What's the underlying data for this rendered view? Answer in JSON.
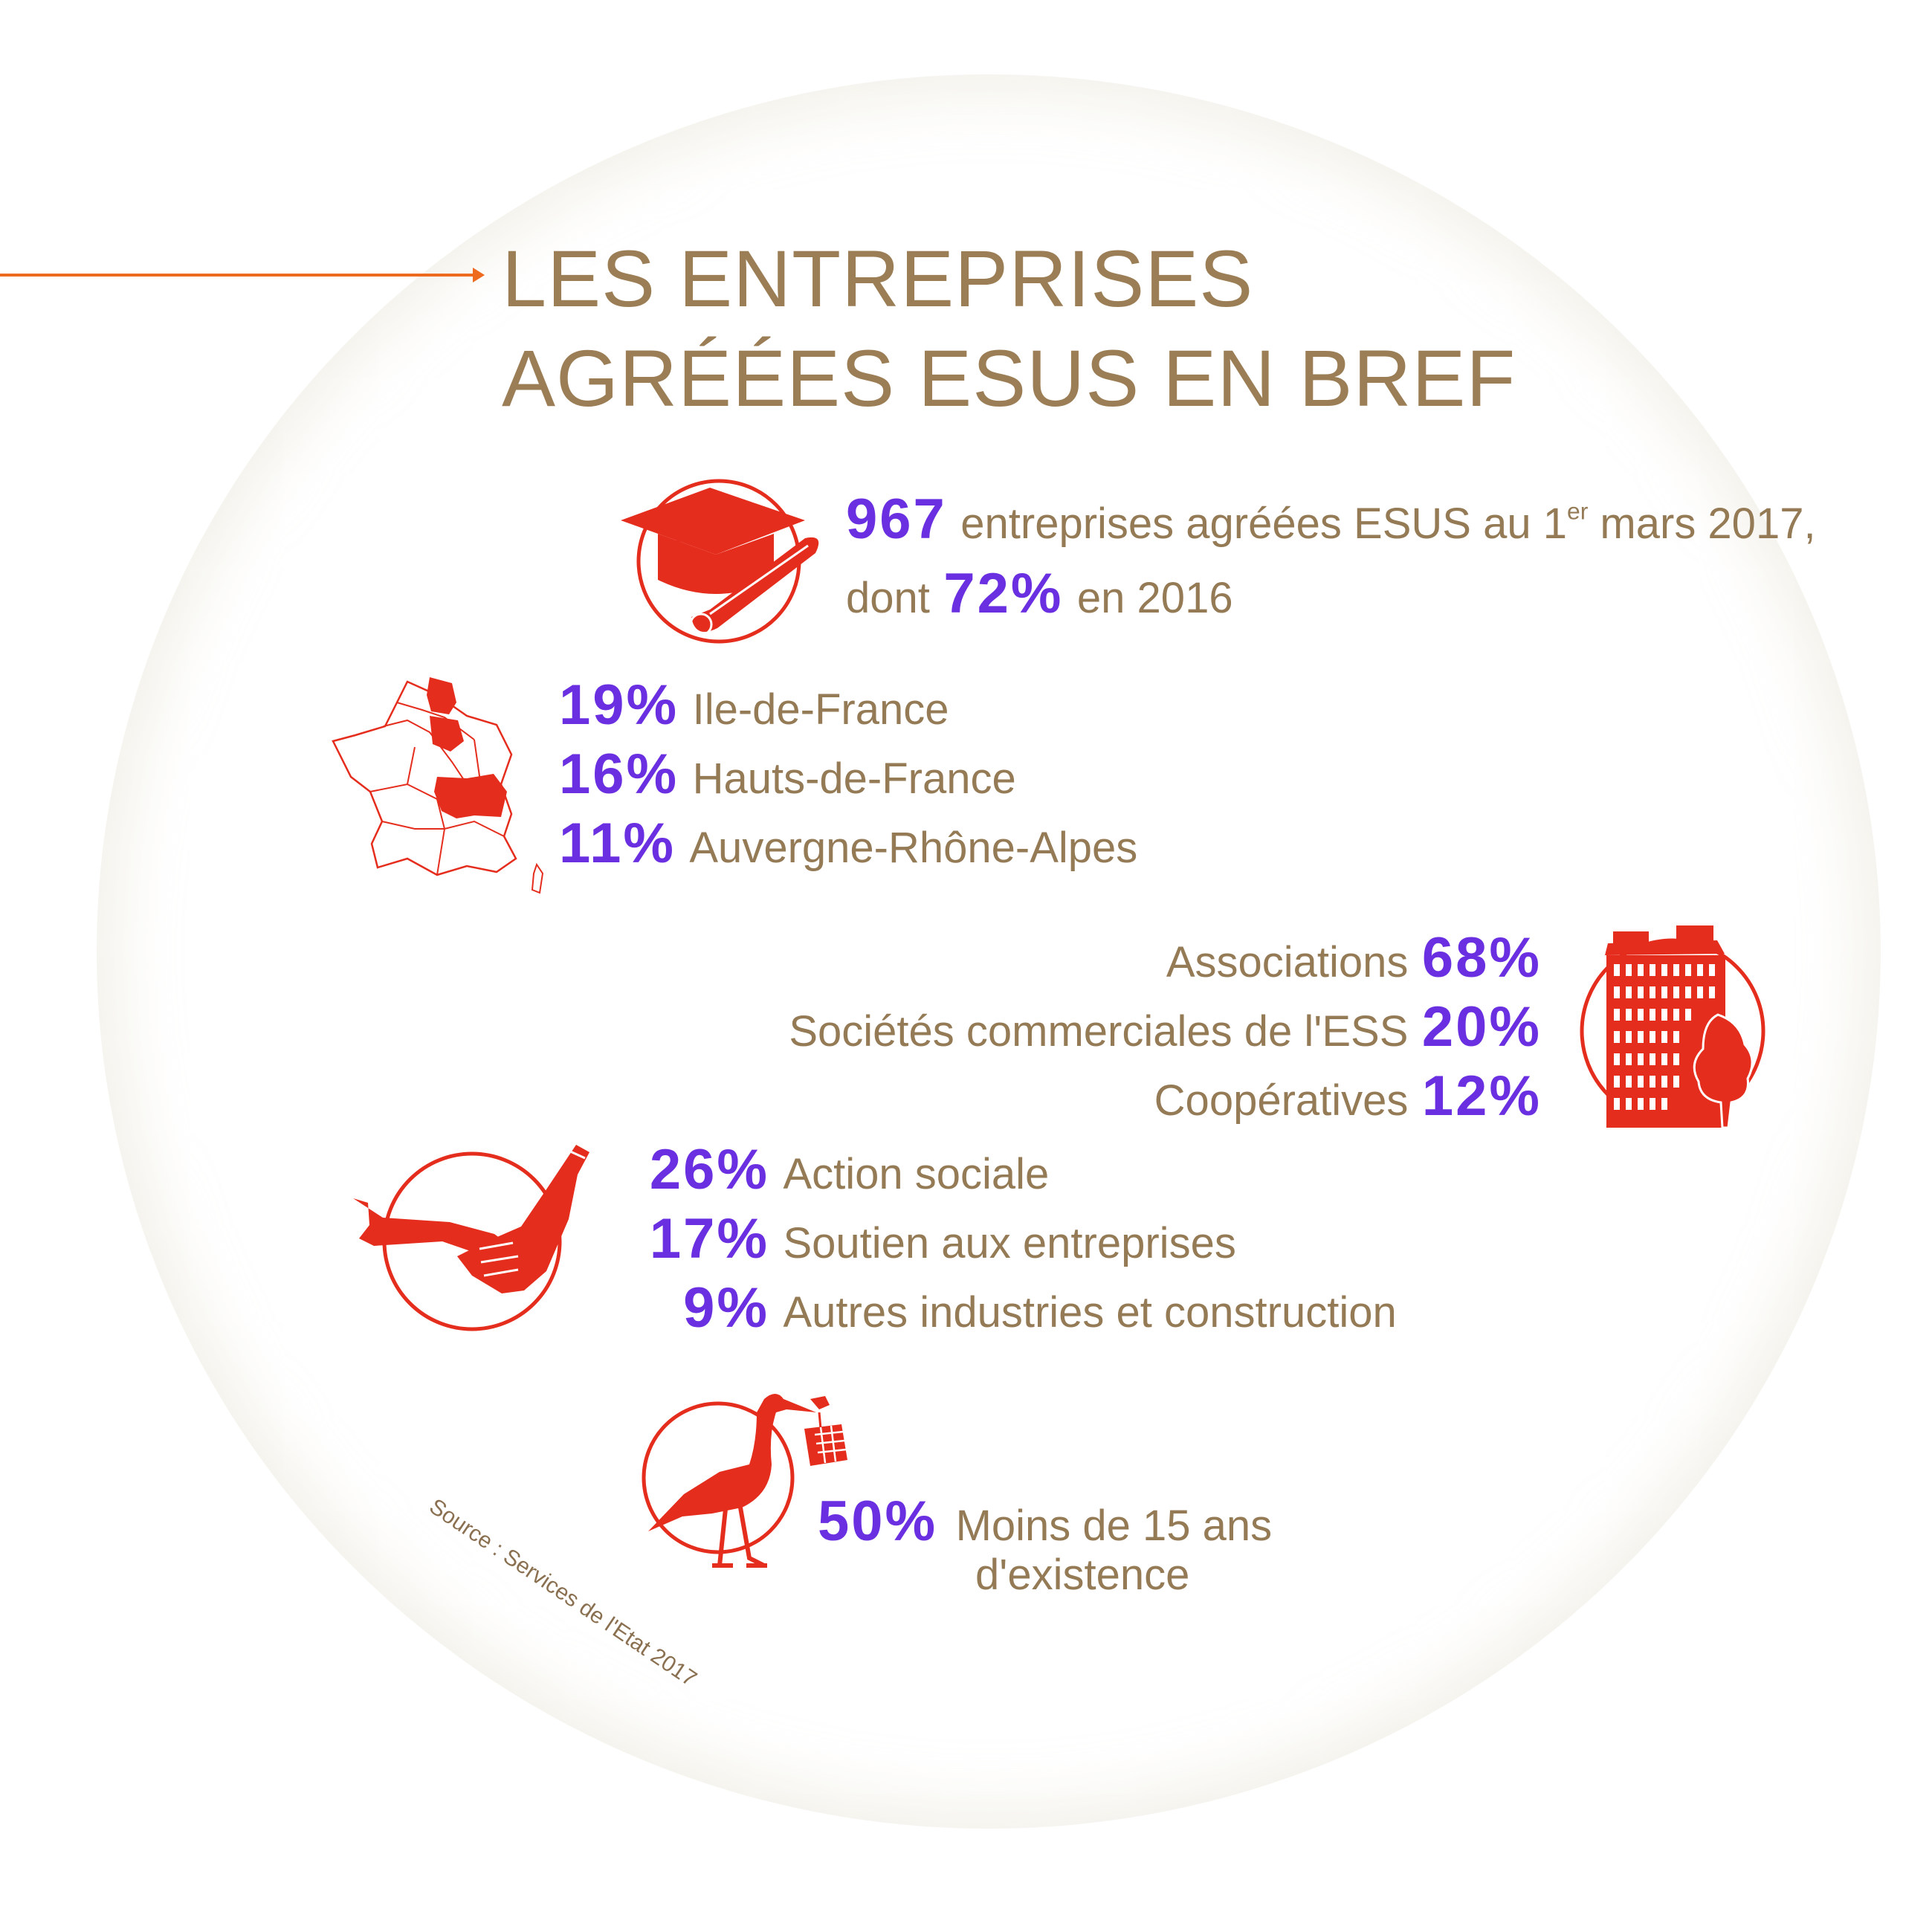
{
  "title": {
    "line1": "LES ENTREPRISES",
    "line2": "AGRÉÉES ESUS EN BREF"
  },
  "colors": {
    "accent": "#e52d1d",
    "title": "#9b7e55",
    "text": "#947a55",
    "percent": "#6a2fe0",
    "arrow": "#ee6a1e"
  },
  "intro": {
    "count": "967",
    "text1": "entreprises agréées ESUS au 1",
    "text1_sup": "er",
    "text1_end": " mars 2017,",
    "dont": "dont",
    "pct": "72%",
    "year": "en 2016",
    "icon": "graduation-cap-icon"
  },
  "regions": {
    "icon": "france-map-icon",
    "items": [
      {
        "pct": "19%",
        "label": "Ile-de-France"
      },
      {
        "pct": "16%",
        "label": "Hauts-de-France"
      },
      {
        "pct": "11%",
        "label": "Auvergne-Rhône-Alpes"
      }
    ]
  },
  "status": {
    "icon": "building-icon",
    "items": [
      {
        "label": "Associations",
        "pct": "68%"
      },
      {
        "label": "Sociétés commerciales de l'ESS",
        "pct": "20%"
      },
      {
        "label": "Coopératives",
        "pct": "12%"
      }
    ]
  },
  "sectors": {
    "icon": "handshake-glove-icon",
    "items": [
      {
        "pct": "26%",
        "label": "Action sociale"
      },
      {
        "pct": "17%",
        "label": "Soutien aux entreprises"
      },
      {
        "pct": "9%",
        "label": "Autres industries et construction"
      }
    ]
  },
  "age": {
    "icon": "stork-icon",
    "pct": "50%",
    "line1": "Moins de 15 ans",
    "line2": "d'existence"
  },
  "source": "Source : Services de l'Etat 2017"
}
